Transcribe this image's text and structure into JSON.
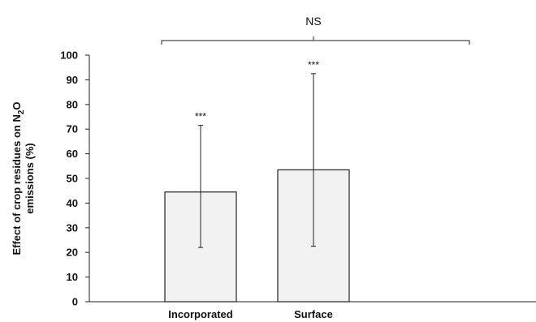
{
  "chart_data": {
    "type": "bar",
    "categories": [
      "Incorporated",
      "Surface"
    ],
    "values": [
      44.5,
      53.5
    ],
    "error_low": [
      22,
      22.5
    ],
    "error_high": [
      71.5,
      92.5
    ],
    "significance": [
      "***",
      "***"
    ],
    "comparison_label": "NS",
    "ylabel_line1": "Effect of crop residues on N",
    "ylabel_sub": "2",
    "ylabel_after": "O",
    "ylabel_line2": "emissions (%)",
    "ylim": [
      0,
      100
    ],
    "yticks": [
      0,
      10,
      20,
      30,
      40,
      50,
      60,
      70,
      80,
      90,
      100
    ],
    "grid": false,
    "bar_color": "#f2f2f2",
    "edge_color": "#222222"
  }
}
